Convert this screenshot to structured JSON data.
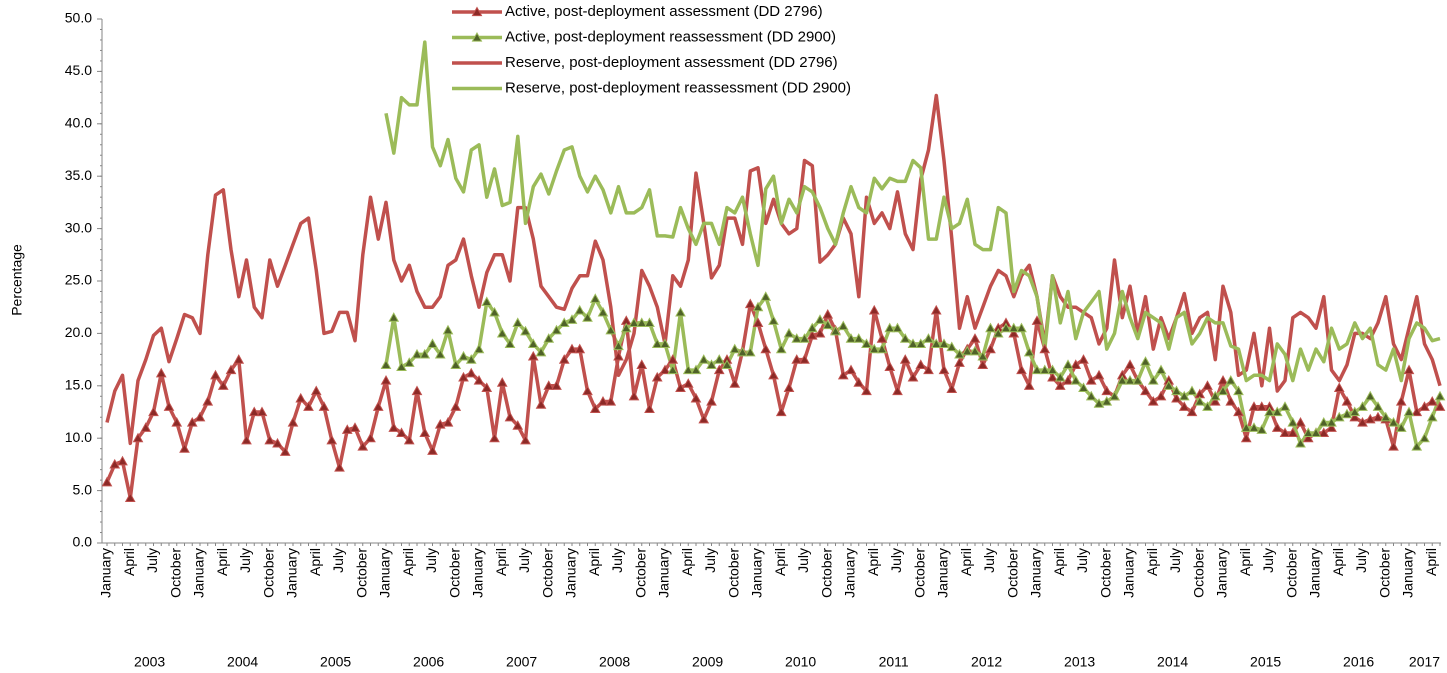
{
  "chart_data": {
    "type": "line",
    "y_label": "Percentage",
    "ylim": [
      0,
      50
    ],
    "yticks": [
      {
        "value": 0,
        "label": "0.0"
      },
      {
        "value": 5,
        "label": "5.0"
      },
      {
        "value": 10,
        "label": "10.0"
      },
      {
        "value": 15,
        "label": "15.0"
      },
      {
        "value": 20,
        "label": "20.0"
      },
      {
        "value": 25,
        "label": "25.0"
      },
      {
        "value": 30,
        "label": "30.0"
      },
      {
        "value": 35,
        "label": "35.0"
      },
      {
        "value": 40,
        "label": "40.0"
      },
      {
        "value": 45,
        "label": "45.0"
      },
      {
        "value": 50,
        "label": "50.0"
      }
    ],
    "years": [
      "2003",
      "2004",
      "2005",
      "2006",
      "2007",
      "2008",
      "2009",
      "2010",
      "2011",
      "2012",
      "2013",
      "2014",
      "2015",
      "2016",
      "2017"
    ],
    "categories": [
      "January",
      null,
      null,
      "April",
      null,
      null,
      "July",
      null,
      null,
      "October",
      null,
      null,
      "January",
      null,
      null,
      "April",
      null,
      null,
      "July",
      null,
      null,
      "October",
      null,
      null,
      "January",
      null,
      null,
      "April",
      null,
      null,
      "July",
      null,
      null,
      "October",
      null,
      null,
      "January",
      null,
      null,
      "April",
      null,
      null,
      "July",
      null,
      null,
      "October",
      null,
      null,
      "January",
      null,
      null,
      "April",
      null,
      null,
      "July",
      null,
      null,
      "October",
      null,
      null,
      "January",
      null,
      null,
      "April",
      null,
      null,
      "July",
      null,
      null,
      "October",
      null,
      null,
      "January",
      null,
      null,
      "April",
      null,
      null,
      "July",
      null,
      null,
      "October",
      null,
      null,
      "January",
      null,
      null,
      "April",
      null,
      null,
      "July",
      null,
      null,
      "October",
      null,
      null,
      "January",
      null,
      null,
      "April",
      null,
      null,
      "July",
      null,
      null,
      "October",
      null,
      null,
      "January",
      null,
      null,
      "April",
      null,
      null,
      "July",
      null,
      null,
      "October",
      null,
      null,
      "January",
      null,
      null,
      "April",
      null,
      null,
      "July",
      null,
      null,
      "October",
      null,
      null,
      "January",
      null,
      null,
      "April",
      null,
      null,
      "July",
      null,
      null,
      "October",
      null,
      null,
      "January",
      null,
      null,
      "April",
      null,
      null,
      "July",
      null,
      null,
      "October",
      null,
      null,
      "January",
      null,
      null,
      "April",
      null,
      null,
      "July",
      null,
      null,
      "October",
      null,
      null,
      "January",
      null,
      null,
      "April",
      null
    ],
    "series": [
      {
        "name": "Active, post-deployment assessment (DD 2796)",
        "color": "#c0504d",
        "marker": "triangle",
        "marker_color": "#8c2a27",
        "values": [
          5.8,
          7.5,
          7.8,
          4.3,
          10,
          11,
          12.5,
          16.2,
          13,
          11.5,
          9,
          11.5,
          12,
          13.5,
          16,
          15,
          16.5,
          17.5,
          9.8,
          12.5,
          12.5,
          9.8,
          9.5,
          8.7,
          11.5,
          13.8,
          13,
          14.5,
          13,
          9.8,
          7.2,
          10.8,
          11,
          9.2,
          10,
          13,
          15.5,
          11,
          10.5,
          9.8,
          14.5,
          10.5,
          8.8,
          11.3,
          11.5,
          13,
          15.8,
          16.2,
          15.5,
          14.8,
          10,
          15.3,
          12,
          11.2,
          9.8,
          17.8,
          13.2,
          15,
          15,
          17.5,
          18.5,
          18.5,
          14.5,
          12.8,
          13.5,
          13.5,
          17.8,
          21.2,
          14,
          17,
          12.8,
          15.8,
          16.5,
          17.5,
          14.8,
          15.2,
          13.8,
          11.8,
          13.5,
          16.5,
          17.5,
          15.2,
          18.3,
          22.8,
          21,
          18.5,
          16,
          12.5,
          14.8,
          17.5,
          17.5,
          19.8,
          20,
          21.8,
          20.3,
          16,
          16.5,
          15.3,
          14.5,
          22.2,
          19.5,
          16.8,
          14.5,
          17.5,
          15.8,
          17,
          16.5,
          22.2,
          16.5,
          14.7,
          17.2,
          18.5,
          19.5,
          17,
          18.5,
          20.5,
          21,
          20,
          16.5,
          15,
          21.2,
          18.5,
          15.8,
          15,
          15.5,
          17,
          17.5,
          15.5,
          16,
          14.5,
          14,
          16,
          17,
          15.5,
          14.5,
          13.5,
          14,
          15.5,
          13.8,
          13,
          12.5,
          14.2,
          15,
          13.5,
          15.5,
          13.5,
          12.5,
          10,
          13,
          13,
          13,
          11,
          10.5,
          10.5,
          11.5,
          10,
          10.5,
          10.5,
          11,
          14.8,
          13.5,
          12,
          11.5,
          11.8,
          12,
          11.8,
          9.2,
          13.5,
          16.5,
          12.5,
          13,
          13.5,
          13
        ]
      },
      {
        "name": "Active, post-deployment reassessment (DD 2900)",
        "color": "#9bbb59",
        "marker": "triangle",
        "marker_color": "#4f6228",
        "values": [
          null,
          null,
          null,
          null,
          null,
          null,
          null,
          null,
          null,
          null,
          null,
          null,
          null,
          null,
          null,
          null,
          null,
          null,
          null,
          null,
          null,
          null,
          null,
          null,
          null,
          null,
          null,
          null,
          null,
          null,
          null,
          null,
          null,
          null,
          null,
          null,
          17,
          21.5,
          16.8,
          17.2,
          18,
          18,
          19,
          18,
          20.3,
          17,
          17.8,
          17.5,
          18.5,
          23,
          22,
          20,
          19,
          21,
          20.2,
          19,
          18.2,
          19.5,
          20.3,
          21,
          21.3,
          22.2,
          21.5,
          23.3,
          22,
          20.3,
          18.8,
          20.5,
          21,
          21,
          21,
          19,
          19,
          16.5,
          22,
          16.5,
          16.5,
          17.5,
          17,
          17.5,
          17,
          18.5,
          18.2,
          18.2,
          22.5,
          23.5,
          21.2,
          18.5,
          20,
          19.5,
          19.5,
          20.5,
          21.3,
          20.8,
          20.2,
          20.7,
          19.5,
          19.5,
          19,
          18.5,
          18.5,
          20.5,
          20.5,
          19.5,
          19,
          19,
          19.5,
          19,
          19,
          18.7,
          18,
          18.3,
          18.3,
          17.8,
          20.5,
          20,
          20.5,
          20.5,
          20.5,
          18.2,
          16.5,
          16.5,
          16.5,
          15.8,
          17,
          15.5,
          14.8,
          14,
          13.3,
          13.5,
          14,
          15.5,
          15.5,
          15.5,
          17.3,
          15.5,
          16.5,
          15,
          14.5,
          14,
          14.5,
          13.5,
          13,
          14,
          14.5,
          15.5,
          14.5,
          11,
          11,
          10.8,
          12.5,
          12.5,
          13,
          11.5,
          9.5,
          10.5,
          10.5,
          11.5,
          11.5,
          12,
          12.3,
          12.5,
          13,
          14,
          13,
          12,
          11.5,
          11,
          12.5,
          9.2,
          10,
          12,
          14
        ]
      },
      {
        "name": "Reserve, post-deployment assessment (DD 2796)",
        "color": "#c0504d",
        "values": [
          11.5,
          14.5,
          16,
          9.5,
          15.5,
          17.5,
          19.8,
          20.5,
          17.3,
          19.5,
          21.8,
          21.5,
          20,
          27.5,
          33.2,
          33.7,
          28,
          23.5,
          27,
          22.5,
          21.5,
          27,
          24.5,
          26.5,
          28.5,
          30.5,
          31,
          26,
          20,
          20.2,
          22,
          22,
          19.3,
          27.5,
          33,
          29,
          32.5,
          27,
          25,
          26.5,
          24,
          22.5,
          22.5,
          23.5,
          26.5,
          27,
          29,
          25.5,
          22.5,
          25.8,
          27.5,
          27.5,
          25,
          32,
          32,
          29,
          24.5,
          23.5,
          22.5,
          22.3,
          24.3,
          25.5,
          25.5,
          28.8,
          27,
          22.5,
          16,
          17.5,
          20,
          26,
          24.5,
          22.5,
          19,
          25.5,
          24.5,
          27,
          35.3,
          30.5,
          25.3,
          26.5,
          31,
          31,
          28.5,
          35.5,
          35.8,
          30.5,
          32.8,
          30.5,
          29.5,
          30,
          36.5,
          36,
          26.8,
          27.5,
          28.5,
          31,
          29.5,
          23.5,
          33,
          30.5,
          31.5,
          30,
          33.5,
          29.5,
          28,
          34.7,
          37.5,
          42.7,
          36.5,
          29,
          20.5,
          23.5,
          20.5,
          22.5,
          24.5,
          26,
          25.5,
          23.5,
          25.5,
          26.5,
          23.5,
          19,
          25.5,
          23.5,
          22.5,
          22.5,
          22,
          21.5,
          19,
          20.5,
          27,
          21.5,
          24.5,
          20,
          23.5,
          18.5,
          21.5,
          19.5,
          21.5,
          23.8,
          20,
          21.5,
          22,
          17.5,
          24.5,
          22,
          16,
          16.5,
          20,
          15,
          20.5,
          14.5,
          15.5,
          21.5,
          22,
          21.5,
          20.5,
          23.5,
          16.5,
          15.5,
          17,
          20,
          20,
          19.5,
          21,
          23.5,
          19,
          17.5,
          20.5,
          23.5,
          19,
          17.5,
          15
        ]
      },
      {
        "name": "Reserve, post-deployment reassessment (DD 2900)",
        "color": "#9bbb59",
        "values": [
          null,
          null,
          null,
          null,
          null,
          null,
          null,
          null,
          null,
          null,
          null,
          null,
          null,
          null,
          null,
          null,
          null,
          null,
          null,
          null,
          null,
          null,
          null,
          null,
          null,
          null,
          null,
          null,
          null,
          null,
          null,
          null,
          null,
          null,
          null,
          null,
          41,
          37.2,
          42.5,
          41.8,
          41.8,
          47.8,
          37.8,
          36,
          38.5,
          34.8,
          33.5,
          37.5,
          38,
          33,
          35.7,
          32.2,
          32.5,
          38.8,
          30.5,
          34,
          35.2,
          33.3,
          35.5,
          37.5,
          37.8,
          35,
          33.5,
          35,
          33.7,
          31.5,
          34,
          31.5,
          31.5,
          32,
          33.7,
          29.3,
          29.3,
          29.2,
          32,
          30,
          28.5,
          30.5,
          30.5,
          28.5,
          32,
          31.5,
          33,
          29.5,
          26.5,
          33.8,
          35,
          30.5,
          32.8,
          31.5,
          34,
          33.5,
          32,
          30,
          28.5,
          31.5,
          34,
          32,
          31.5,
          34.8,
          33.8,
          34.8,
          34.5,
          34.5,
          36.5,
          35.8,
          29,
          29,
          33,
          30,
          30.5,
          32.8,
          28.5,
          28,
          28,
          32,
          31.5,
          24,
          26,
          25.5,
          23.5,
          18.5,
          25.5,
          21,
          24,
          19.5,
          22,
          23,
          24,
          18.5,
          20,
          24,
          21.5,
          19.5,
          22,
          21.5,
          21,
          18.5,
          21.5,
          22,
          19,
          20,
          21.5,
          21,
          21,
          18.8,
          18.5,
          15.5,
          16,
          16,
          15.5,
          19,
          18,
          15.5,
          18.5,
          16.5,
          18.5,
          17.3,
          20.5,
          18.5,
          19,
          21,
          19.5,
          20.5,
          17,
          16.5,
          18.5,
          15.5,
          19.5,
          21,
          20.5,
          19.3,
          19.5
        ]
      }
    ],
    "legend": "top-center"
  }
}
